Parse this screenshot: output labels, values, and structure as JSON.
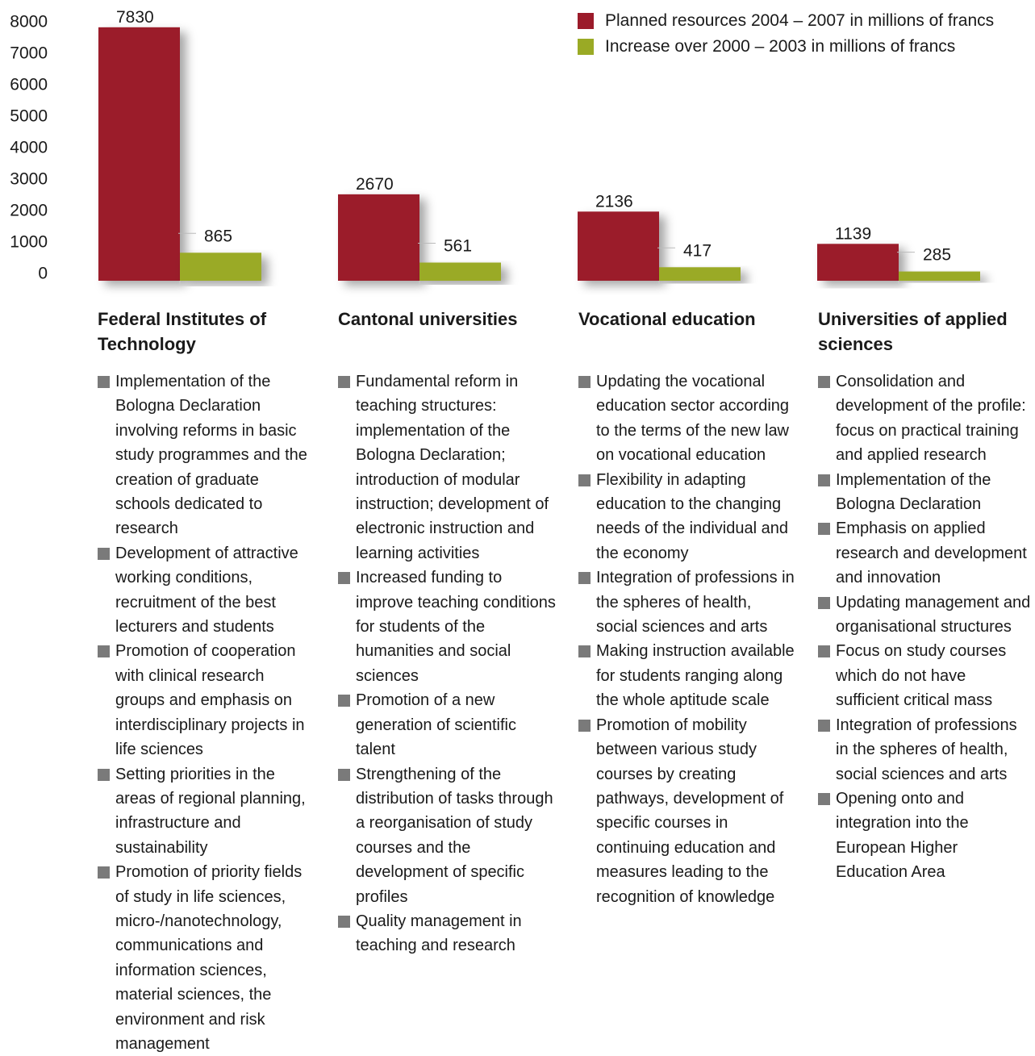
{
  "chart_data": {
    "type": "bar",
    "categories": [
      "Federal Institutes of Technology",
      "Cantonal universities",
      "Vocational education",
      "Universities of applied sciences"
    ],
    "series": [
      {
        "name": "Planned resources 2004 – 2007 in millions of francs",
        "values": [
          7830,
          2670,
          2136,
          1139
        ],
        "color": "#9b1b2a"
      },
      {
        "name": "Increase over 2000 – 2003 in millions of francs",
        "values": [
          865,
          561,
          417,
          285
        ],
        "color": "#9aaa25"
      }
    ],
    "y_ticks": [
      "8000",
      "7000",
      "6000",
      "5000",
      "4000",
      "3000",
      "2000",
      "1000",
      "0"
    ],
    "ylim": [
      0,
      8000
    ],
    "grid": false,
    "legend_position": "top-right",
    "data_labels": {
      "planned": [
        "7830",
        "2670",
        "2136",
        "1139"
      ],
      "increase": [
        "865",
        "561",
        "417",
        "285"
      ]
    }
  },
  "legend": {
    "planned_label": "Planned resources 2004 – 2007 in millions of francs",
    "increase_label": "Increase over 2000 – 2003 in millions of francs"
  },
  "categories": [
    {
      "title": "Federal Institutes of Technology",
      "items": [
        "Implementation of the Bologna Declaration involving reforms in basic study programmes and the creation of graduate schools dedicated to research",
        "Development of attractive working conditions, recruitment of the best lecturers and students",
        "Promotion of cooperation with clinical research groups and emphasis on interdisciplinary projects in life sciences",
        "Setting priorities in the areas of regional planning, infrastructure and sustainability",
        "Promotion of priority fields of study in life sciences, micro-/nanotechnology, communications and information sciences, material sciences, the environment and risk management"
      ]
    },
    {
      "title": "Cantonal universities",
      "items": [
        "Fundamental reform in teaching structures: implementation of the Bologna Declaration; introduction of modular instruction; development of electronic instruction and learning activities",
        "Increased funding to improve teaching conditions for students of the humanities and social sciences",
        "Promotion of a new generation of scientific talent",
        "Strengthening of the distribution of tasks through a reorganisation of study courses and the development of specific profiles",
        "Quality management in teaching and research"
      ]
    },
    {
      "title": "Vocational education",
      "items": [
        "Updating the vocational education sector according to the terms of the new law on vocational education",
        "Flexibility in adapting education to the changing needs of the individual and the economy",
        "Integration of professions in the spheres of health, social sciences and arts",
        "Making instruction available for students ranging along the whole aptitude scale",
        "Promotion of mobility between various study courses by creating pathways, development of specific courses in continuing education and measures leading to the recognition of knowledge"
      ]
    },
    {
      "title": "Universities of applied sciences",
      "items": [
        "Consolidation and development of the profile: focus on practical training and applied research",
        "Implementation of the Bologna Declaration",
        "Emphasis on applied research and development and innovation",
        "Updating management and organisational structures",
        "Focus on study courses which do not have sufficient critical mass",
        "Integration of professions in the spheres of health, social sciences and arts",
        "Opening onto and integration into the European Higher Education Area"
      ]
    }
  ]
}
